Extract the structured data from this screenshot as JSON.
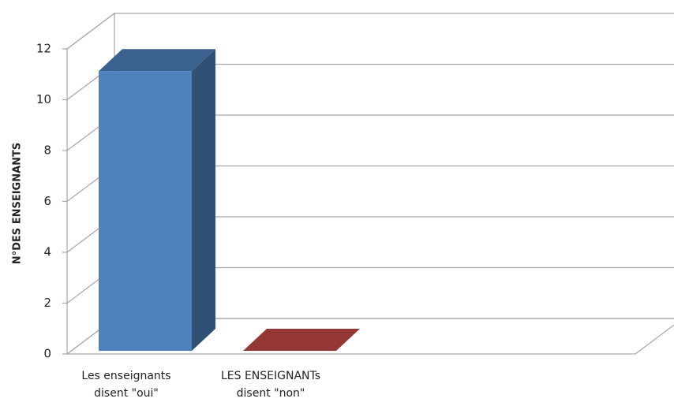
{
  "chart_data": {
    "type": "bar3d",
    "y_label": "N°DES ENSEIGNANTS",
    "categories": [
      "Les enseignants disent \"oui\"",
      "LES ENSEIGNANTs disent \"non\""
    ],
    "values": [
      11,
      0
    ],
    "colors": [
      "#4f81bd",
      "#953735"
    ],
    "ylim": [
      0,
      12
    ],
    "yticks": [
      0,
      2,
      4,
      6,
      8,
      10,
      12
    ],
    "grid": true
  }
}
